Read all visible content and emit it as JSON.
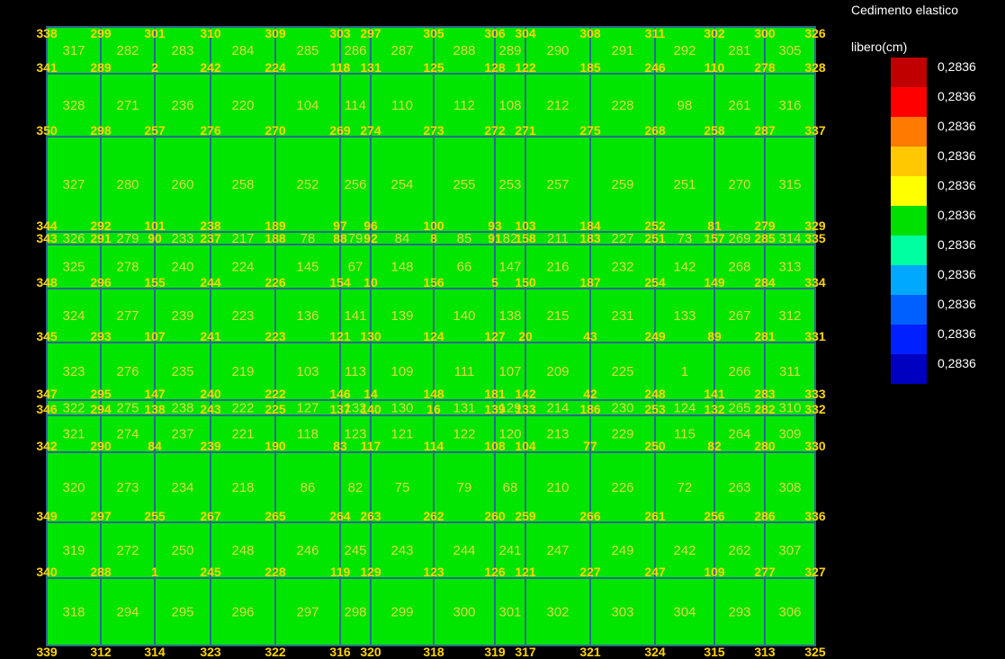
{
  "legend": {
    "title_line1": "Cedimento elastico",
    "title_line2": "libero(cm)",
    "colors": [
      "#c00000",
      "#ff0000",
      "#ff7a00",
      "#ffc800",
      "#ffff00",
      "#00e000",
      "#00ffa0",
      "#00a8ff",
      "#0060ff",
      "#0020ff",
      "#0000c0"
    ],
    "values": [
      "0,2836",
      "0,2836",
      "0,2836",
      "0,2836",
      "0,2836",
      "0,2836",
      "0,2836",
      "0,2836",
      "0,2836",
      "0,2836",
      "0,2836"
    ]
  },
  "mesh": {
    "fill_color": "#00e600",
    "line_color": "#2c6b8a",
    "cell_label_color": "#e0d84a",
    "node_label_color": "#ffd400",
    "cell_rows": [
      [
        "317",
        "282",
        "283",
        "284",
        "285",
        "286",
        "287",
        "288",
        "289",
        "290",
        "291",
        "292",
        "281",
        "305"
      ],
      [
        "328",
        "271",
        "236",
        "220",
        "104",
        "114",
        "110",
        "112",
        "108",
        "212",
        "228",
        "98",
        "261",
        "316"
      ],
      [
        "327",
        "280",
        "260",
        "258",
        "252",
        "256",
        "254",
        "255",
        "253",
        "257",
        "259",
        "251",
        "270",
        "315"
      ],
      [
        "326",
        "279",
        "233",
        "217",
        "78",
        "79",
        "84",
        "85",
        "82",
        "211",
        "227",
        "73",
        "269",
        "314"
      ],
      [
        "325",
        "278",
        "240",
        "224",
        "145",
        "67",
        "148",
        "66",
        "147",
        "216",
        "232",
        "142",
        "268",
        "313"
      ],
      [
        "324",
        "277",
        "239",
        "223",
        "136",
        "141",
        "139",
        "140",
        "138",
        "215",
        "231",
        "133",
        "267",
        "312"
      ],
      [
        "323",
        "276",
        "235",
        "219",
        "103",
        "113",
        "109",
        "111",
        "107",
        "209",
        "225",
        "1",
        "266",
        "311"
      ],
      [
        "322",
        "275",
        "238",
        "222",
        "127",
        "132",
        "130",
        "131",
        "129",
        "214",
        "230",
        "124",
        "265",
        "310"
      ],
      [
        "321",
        "274",
        "237",
        "221",
        "118",
        "123",
        "121",
        "122",
        "120",
        "213",
        "229",
        "115",
        "264",
        "309"
      ],
      [
        "320",
        "273",
        "234",
        "218",
        "86",
        "82",
        "75",
        "79",
        "68",
        "210",
        "226",
        "72",
        "263",
        "308"
      ],
      [
        "319",
        "272",
        "250",
        "248",
        "246",
        "245",
        "243",
        "244",
        "241",
        "247",
        "249",
        "242",
        "262",
        "307"
      ],
      [
        "318",
        "294",
        "295",
        "296",
        "297",
        "298",
        "299",
        "300",
        "301",
        "302",
        "303",
        "304",
        "293",
        "306"
      ]
    ],
    "node_rows": [
      [
        "338",
        "299",
        "301",
        "310",
        "309",
        "303",
        "297",
        "305",
        "306",
        "304",
        "308",
        "311",
        "302",
        "300",
        "326"
      ],
      [
        "341",
        "289",
        "2",
        "242",
        "224",
        "118",
        "131",
        "125",
        "128",
        "122",
        "185",
        "246",
        "110",
        "278",
        "328"
      ],
      [
        "350",
        "298",
        "257",
        "276",
        "270",
        "269",
        "274",
        "273",
        "272",
        "271",
        "275",
        "268",
        "258",
        "287",
        "337"
      ],
      [
        "344",
        "292",
        "101",
        "238",
        "189",
        "97",
        "96",
        "100",
        "93",
        "103",
        "184",
        "252",
        "81",
        "279",
        "329"
      ],
      [
        "343",
        "291",
        "90",
        "237",
        "188",
        "88",
        "92",
        "8",
        "91",
        "158",
        "183",
        "251",
        "157",
        "285",
        "335"
      ],
      [
        "348",
        "296",
        "155",
        "244",
        "226",
        "154",
        "10",
        "156",
        "5",
        "150",
        "187",
        "254",
        "149",
        "284",
        "334"
      ],
      [
        "345",
        "293",
        "107",
        "241",
        "223",
        "121",
        "130",
        "124",
        "127",
        "20",
        "43",
        "249",
        "89",
        "281",
        "331"
      ],
      [
        "347",
        "295",
        "147",
        "240",
        "222",
        "146",
        "14",
        "148",
        "181",
        "142",
        "42",
        "248",
        "141",
        "283",
        "333"
      ],
      [
        "346",
        "294",
        "138",
        "243",
        "225",
        "137",
        "140",
        "16",
        "139",
        "133",
        "186",
        "253",
        "132",
        "282",
        "332"
      ],
      [
        "342",
        "290",
        "84",
        "239",
        "190",
        "83",
        "117",
        "114",
        "108",
        "104",
        "77",
        "250",
        "82",
        "280",
        "330"
      ],
      [
        "349",
        "297",
        "255",
        "267",
        "265",
        "264",
        "263",
        "262",
        "260",
        "259",
        "266",
        "261",
        "256",
        "286",
        "336"
      ],
      [
        "340",
        "288",
        "1",
        "245",
        "228",
        "119",
        "129",
        "123",
        "126",
        "121",
        "227",
        "247",
        "109",
        "277",
        "327"
      ],
      [
        "339",
        "312",
        "314",
        "323",
        "322",
        "316",
        "320",
        "318",
        "319",
        "317",
        "321",
        "324",
        "315",
        "313",
        "325"
      ]
    ]
  }
}
